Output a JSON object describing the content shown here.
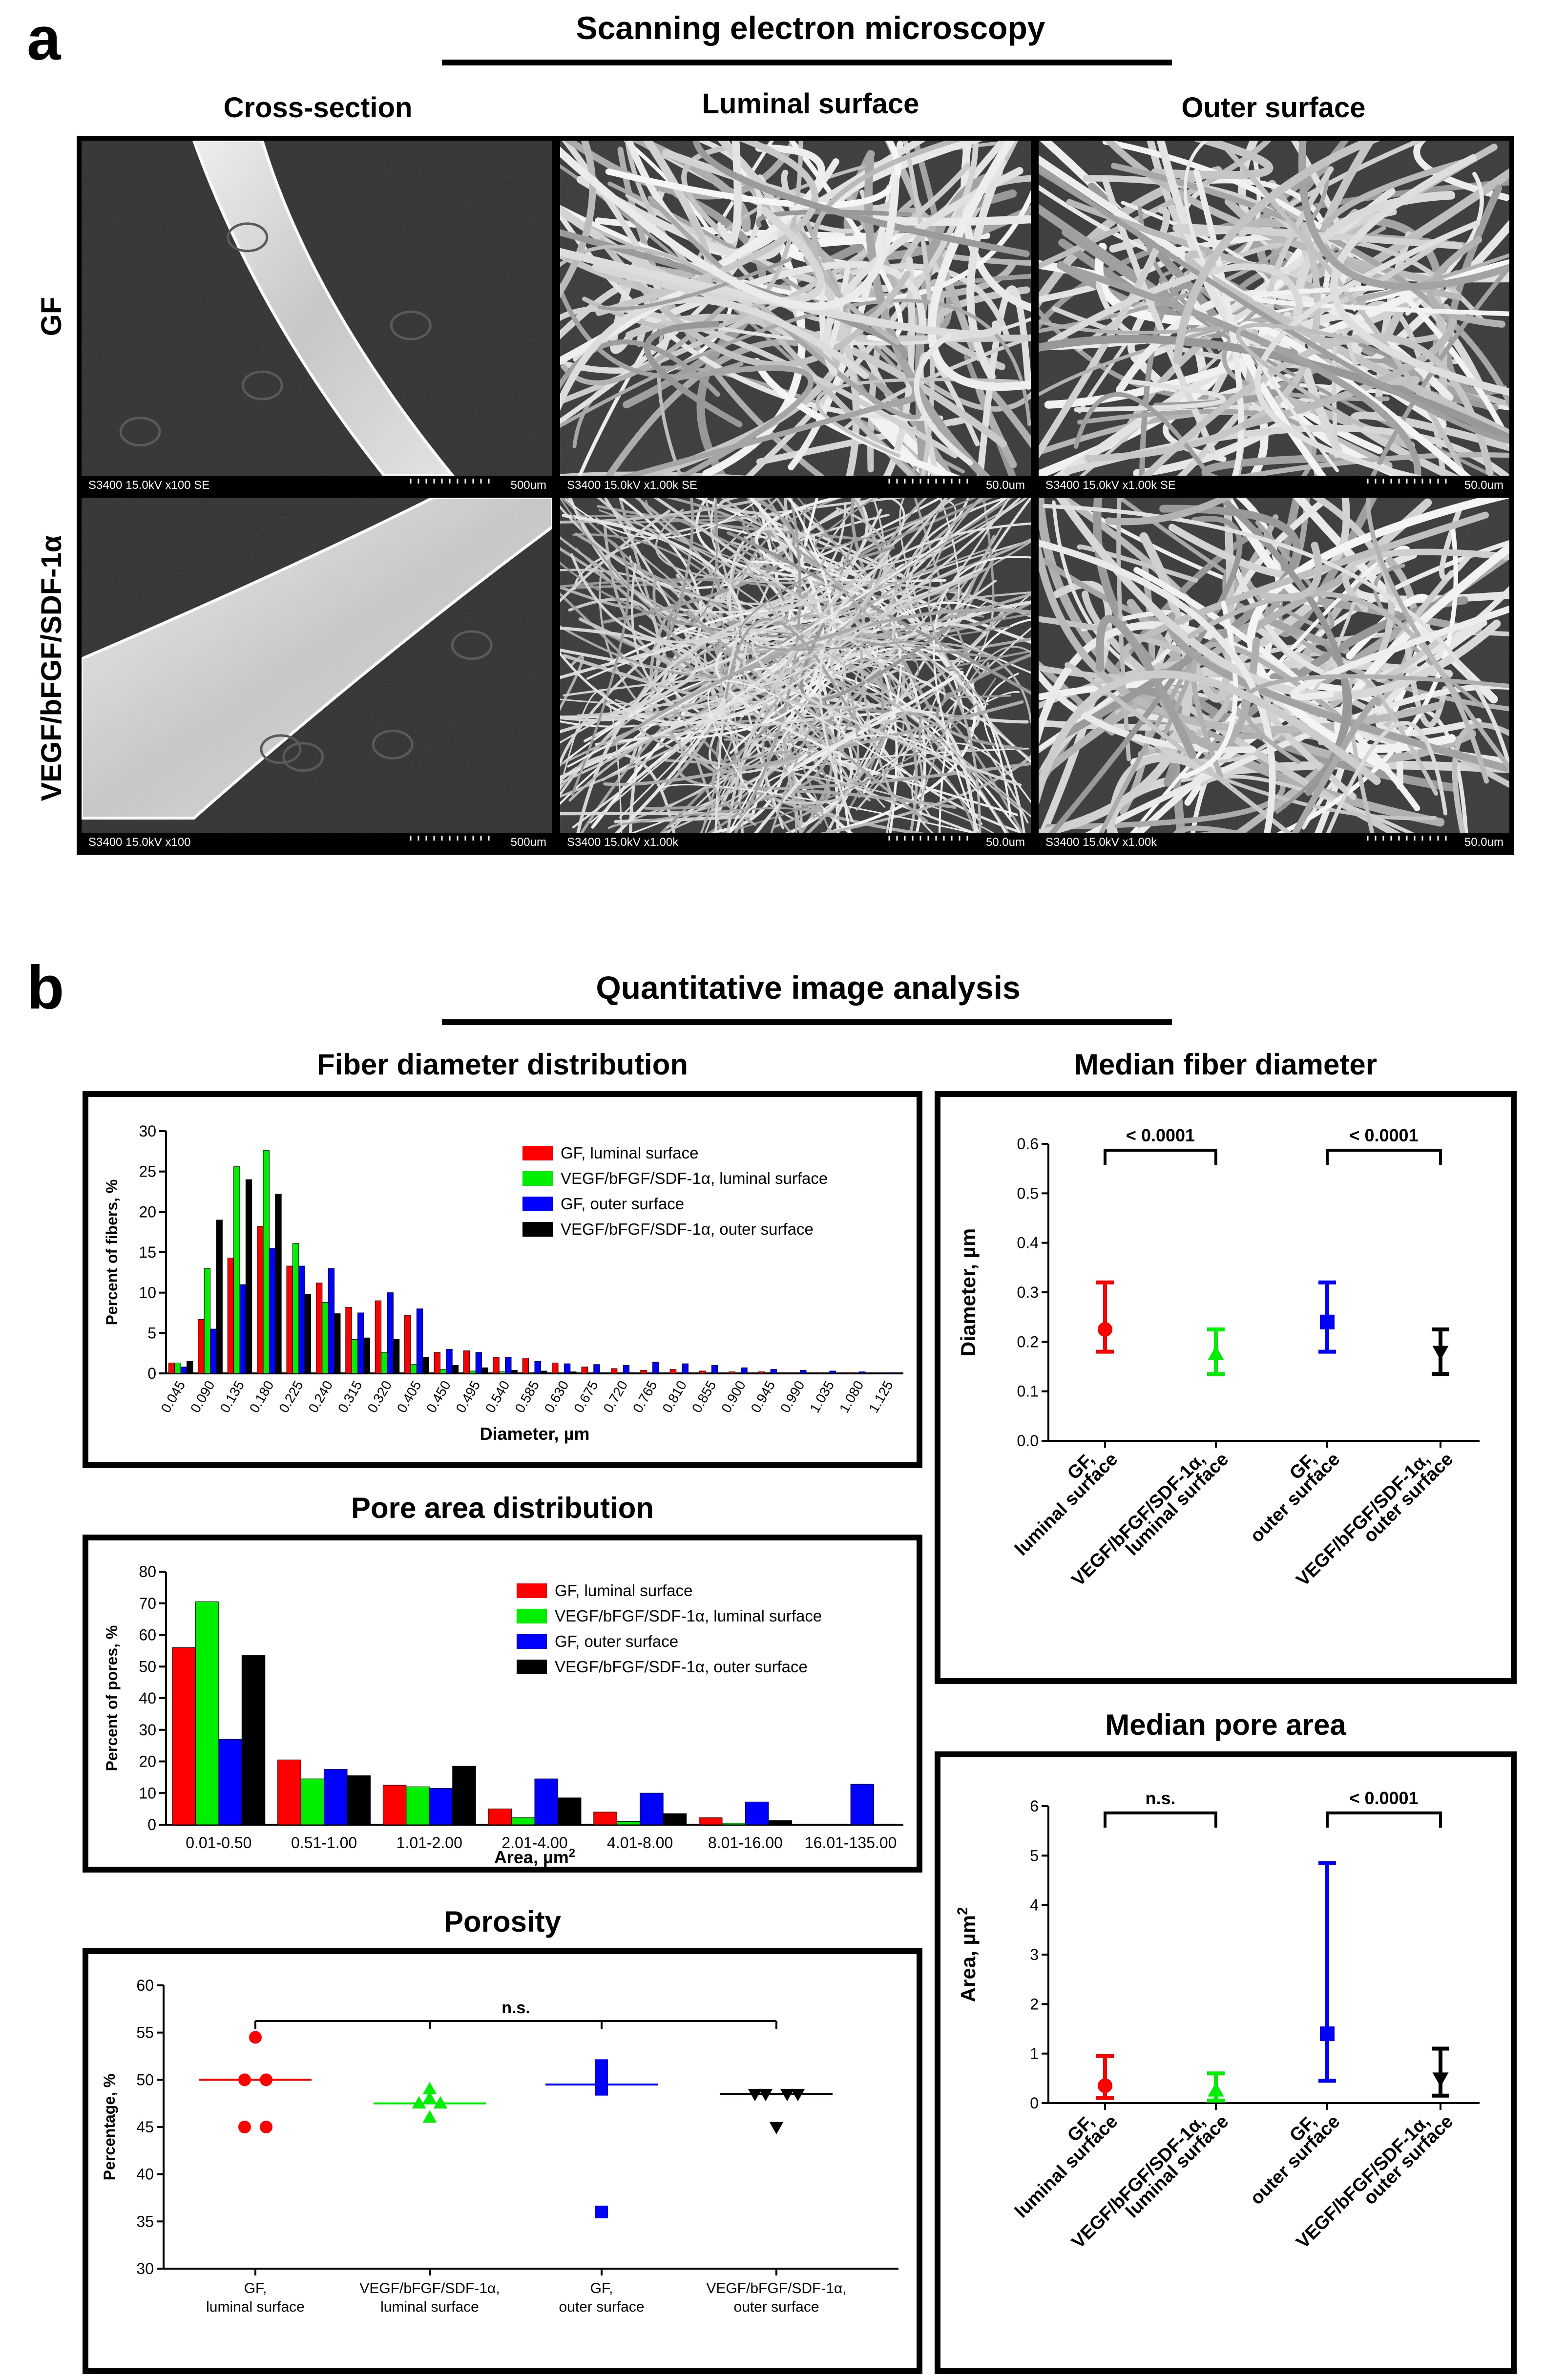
{
  "panel_a": {
    "letter": "a",
    "title": "Scanning electron microscopy",
    "columns": [
      "Cross-section",
      "Luminal surface",
      "Outer surface"
    ],
    "rows": [
      "GF",
      "VEGF/bFGF/SDF-1α"
    ],
    "micrographs": [
      [
        {
          "caption": "S3400 15.0kV x100 SE",
          "scale": "500um",
          "kind": "cross-section"
        },
        {
          "caption": "S3400 15.0kV x1.00k SE",
          "scale": "50.0um",
          "kind": "fibers"
        },
        {
          "caption": "S3400 15.0kV x1.00k SE",
          "scale": "50.0um",
          "kind": "fibers"
        }
      ],
      [
        {
          "caption": "S3400 15.0kV x100",
          "scale": "500um",
          "kind": "cross-section"
        },
        {
          "caption": "S3400 15.0kV x1.00k",
          "scale": "50.0um",
          "kind": "fine-fibers"
        },
        {
          "caption": "S3400 15.0kV x1.00k",
          "scale": "50.0um",
          "kind": "fibers"
        }
      ]
    ]
  },
  "panel_b": {
    "letter": "b",
    "title": "Quantitative image analysis"
  },
  "colors": {
    "gf_lum": "#ff0000",
    "vegf_lum": "#00ee00",
    "gf_out": "#0000ff",
    "vegf_out": "#000000"
  },
  "chart_data": [
    {
      "id": "fiber",
      "type": "bar",
      "title": "Fiber diameter distribution",
      "xlabel": "Diameter, µm",
      "ylabel": "Percent of fibers, %",
      "ylim": [
        0,
        30
      ],
      "yticks": [
        "0",
        "5",
        "10",
        "15",
        "20",
        "25",
        "30"
      ],
      "legend": "top-right",
      "categories": [
        "0.045",
        "0.090",
        "0.135",
        "0.180",
        "0.225",
        "0.240",
        "0.315",
        "0.320",
        "0.405",
        "0.450",
        "0.495",
        "0.540",
        "0.585",
        "0.630",
        "0.675",
        "0.720",
        "0.765",
        "0.810",
        "0.855",
        "0.900",
        "0.945",
        "0.990",
        "1.035",
        "1.080",
        "1.125"
      ],
      "series": [
        {
          "name": "GF, luminal surface",
          "color": "#ff0000",
          "values": [
            1.3,
            6.7,
            14.3,
            18.2,
            13.3,
            11.2,
            8.2,
            9.0,
            7.2,
            2.6,
            2.8,
            2.0,
            1.9,
            1.3,
            0.8,
            0.6,
            0.4,
            0.5,
            0.3,
            0.2,
            0.2,
            0.1,
            0.1,
            0.1,
            0.0
          ]
        },
        {
          "name": "VEGF/bFGF/SDF-1α, luminal surface",
          "color": "#00ee00",
          "values": [
            1.3,
            13.0,
            25.6,
            27.6,
            16.1,
            8.8,
            4.2,
            2.6,
            1.1,
            0.5,
            0.3,
            0.2,
            0.1,
            0.1,
            0.0,
            0.0,
            0.0,
            0.0,
            0.0,
            0.0,
            0.0,
            0.0,
            0.0,
            0.0,
            0.0
          ]
        },
        {
          "name": "GF, outer surface",
          "color": "#0000ff",
          "values": [
            0.8,
            5.5,
            11.0,
            15.5,
            13.3,
            13.0,
            7.5,
            10.0,
            8.0,
            3.0,
            2.6,
            2.0,
            1.5,
            1.2,
            1.1,
            1.0,
            1.4,
            1.2,
            1.0,
            0.7,
            0.5,
            0.4,
            0.3,
            0.2,
            0.1
          ]
        },
        {
          "name": "VEGF/bFGF/SDF-1α, outer surface",
          "color": "#000000",
          "values": [
            1.5,
            19.0,
            24.0,
            22.2,
            9.8,
            7.4,
            4.4,
            4.2,
            2.0,
            1.0,
            0.7,
            0.4,
            0.3,
            0.2,
            0.1,
            0.1,
            0.0,
            0.0,
            0.0,
            0.0,
            0.0,
            0.0,
            0.0,
            0.0,
            0.0
          ]
        }
      ]
    },
    {
      "id": "pore",
      "type": "bar",
      "title": "Pore area distribution",
      "xlabel": "Area, µm",
      "xlabel_sup": "2",
      "ylabel": "Percent of pores, %",
      "ylim": [
        0,
        80
      ],
      "yticks": [
        "0",
        "10",
        "20",
        "30",
        "40",
        "50",
        "60",
        "70",
        "80"
      ],
      "legend": "top-right",
      "categories": [
        "0.01-0.50",
        "0.51-1.00",
        "1.01-2.00",
        "2.01-4.00",
        "4.01-8.00",
        "8.01-16.00",
        "16.01-135.00"
      ],
      "series": [
        {
          "name": "GF, luminal surface",
          "color": "#ff0000",
          "values": [
            56,
            20.5,
            12.5,
            5,
            4,
            2.2,
            0
          ]
        },
        {
          "name": "VEGF/bFGF/SDF-1α, luminal surface",
          "color": "#00ee00",
          "values": [
            70.5,
            14.5,
            12,
            2.2,
            1,
            0.5,
            0
          ]
        },
        {
          "name": "GF, outer surface",
          "color": "#0000ff",
          "values": [
            27,
            17.5,
            11.5,
            14.5,
            10,
            7.2,
            12.8
          ]
        },
        {
          "name": "VEGF/bFGF/SDF-1α, outer surface",
          "color": "#000000",
          "values": [
            53.5,
            15.5,
            18.5,
            8.5,
            3.5,
            1.3,
            0
          ]
        }
      ]
    },
    {
      "id": "porosity",
      "type": "scatter",
      "title": "Porosity",
      "ylabel": "Percentage, %",
      "ylim": [
        30,
        60
      ],
      "yticks": [
        "30",
        "35",
        "40",
        "45",
        "50",
        "55",
        "60"
      ],
      "significance": [
        "n.s."
      ],
      "groups": [
        {
          "label1": "GF,",
          "label2": "luminal surface",
          "color": "#ff0000",
          "marker": "circle",
          "points": [
            54.5,
            50.0,
            50.0,
            45.0,
            45.0
          ],
          "median": 50.0
        },
        {
          "label1": "VEGF/bFGF/SDF-1α,",
          "label2": "luminal surface",
          "color": "#00ee00",
          "marker": "triangle-up",
          "points": [
            49.0,
            48.0,
            47.5,
            47.5,
            46.0
          ],
          "median": 47.5
        },
        {
          "label1": "GF,",
          "label2": "outer surface",
          "color": "#0000ff",
          "marker": "square",
          "points": [
            51.5,
            50.2,
            49.5,
            49.0,
            36.0
          ],
          "median": 49.5
        },
        {
          "label1": "VEGF/bFGF/SDF-1α,",
          "label2": "outer surface",
          "color": "#000000",
          "marker": "triangle-down",
          "points": [
            48.5,
            48.5,
            48.5,
            48.5,
            45.0
          ],
          "median": 48.5
        }
      ]
    },
    {
      "id": "median-fiber",
      "type": "scatter",
      "title": "Median fiber diameter",
      "ylabel": "Diameter, µm",
      "ylim": [
        0,
        0.6
      ],
      "yticks": [
        "0.0",
        "0.1",
        "0.2",
        "0.3",
        "0.4",
        "0.5",
        "0.6"
      ],
      "significance": [
        "< 0.0001",
        "< 0.0001"
      ],
      "groups": [
        {
          "label1": "GF,",
          "label2": "luminal surface",
          "color": "#ff0000",
          "marker": "circle",
          "median": 0.225,
          "low": 0.18,
          "high": 0.32
        },
        {
          "label1": "VEGF/bFGF/SDF-1α,",
          "label2": "luminal surface",
          "color": "#00ee00",
          "marker": "triangle-up",
          "median": 0.175,
          "low": 0.135,
          "high": 0.225
        },
        {
          "label1": "GF,",
          "label2": "outer surface",
          "color": "#0000ff",
          "marker": "square",
          "median": 0.24,
          "low": 0.18,
          "high": 0.32
        },
        {
          "label1": "VEGF/bFGF/SDF-1α,",
          "label2": "outer surface",
          "color": "#000000",
          "marker": "triangle-down",
          "median": 0.18,
          "low": 0.135,
          "high": 0.225
        }
      ]
    },
    {
      "id": "median-pore",
      "type": "scatter",
      "title": "Median pore area",
      "ylabel": "Area, µm",
      "ylabel_sup": "2",
      "ylim": [
        0,
        6
      ],
      "yticks": [
        "0",
        "1",
        "2",
        "3",
        "4",
        "5",
        "6"
      ],
      "significance": [
        "n.s.",
        "< 0.0001"
      ],
      "groups": [
        {
          "label1": "GF,",
          "label2": "luminal surface",
          "color": "#ff0000",
          "marker": "circle",
          "median": 0.35,
          "low": 0.1,
          "high": 0.95
        },
        {
          "label1": "VEGF/bFGF/SDF-1α,",
          "label2": "luminal surface",
          "color": "#00ee00",
          "marker": "triangle-up",
          "median": 0.25,
          "low": 0.05,
          "high": 0.6
        },
        {
          "label1": "GF,",
          "label2": "outer surface",
          "color": "#0000ff",
          "marker": "square",
          "median": 1.4,
          "low": 0.45,
          "high": 4.85
        },
        {
          "label1": "VEGF/bFGF/SDF-1α,",
          "label2": "outer surface",
          "color": "#000000",
          "marker": "triangle-down",
          "median": 0.5,
          "low": 0.15,
          "high": 1.1
        }
      ]
    }
  ]
}
